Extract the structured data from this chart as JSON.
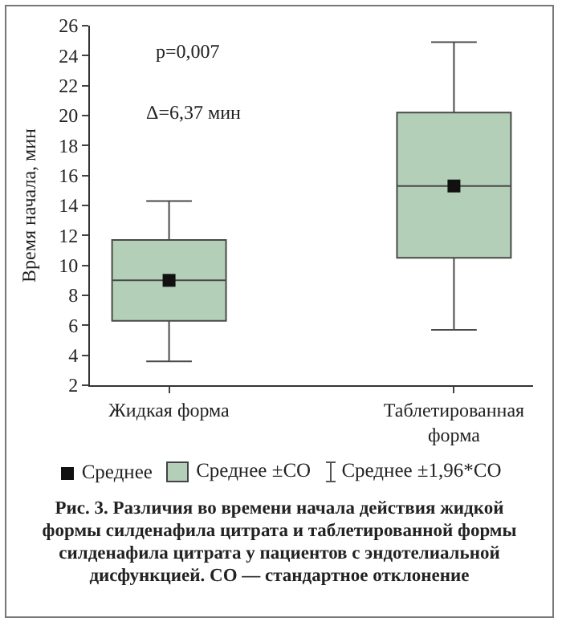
{
  "chart_data": {
    "type": "box",
    "title": "Рис. 3. Различия во времени начала действия жидкой формы силденафила цитрата и таблетированной формы силденафила цитрата у пациентов с эндотелиальной дисфункцией. СО — стандартное отклонение",
    "ylabel": "Время начала, мин",
    "categories": [
      "Жидкая форма",
      "Таблетированная форма"
    ],
    "series": [
      {
        "name": "Среднее ±СО",
        "type": "box",
        "color": "#b3cfb8",
        "boxes": [
          {
            "low": 3.6,
            "q1": 6.3,
            "median": 9.0,
            "q3": 11.7,
            "high": 14.3
          },
          {
            "low": 5.7,
            "q1": 10.5,
            "median": 15.3,
            "q3": 20.2,
            "high": 24.9
          }
        ]
      },
      {
        "name": "Среднее",
        "type": "scatter",
        "color": "#111111",
        "marker": "square",
        "values": [
          9.0,
          15.3
        ]
      }
    ],
    "annotations": [
      "p=0,007",
      "Δ=6,37 мин",
      "Среднее ±1,96*СО"
    ],
    "ylim": [
      2,
      26
    ],
    "yticks": [
      2,
      4,
      6,
      8,
      10,
      12,
      14,
      16,
      18,
      20,
      22,
      24,
      26
    ],
    "grid": false,
    "legend": "bottom"
  }
}
